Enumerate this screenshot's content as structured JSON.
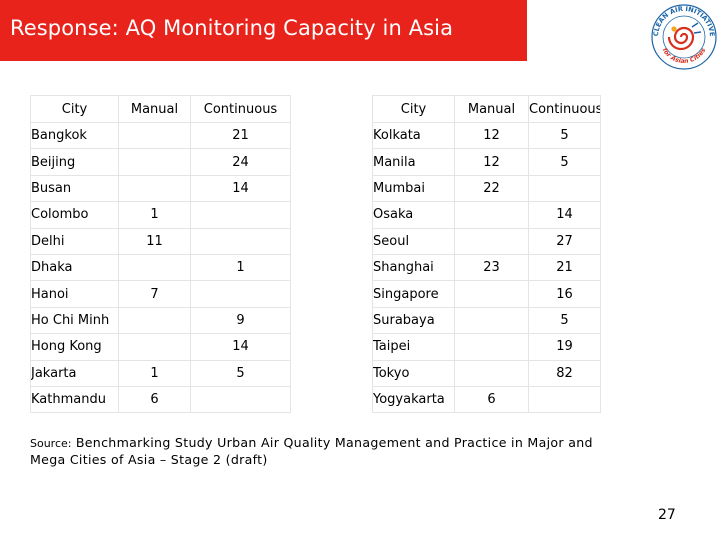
{
  "title": "Response: AQ Monitoring Capacity in Asia",
  "logo": {
    "text_top": "CLEAN AIR INITIATIVE",
    "text_bottom": "for Asian Cities",
    "colors": {
      "ring": "#1a64a8",
      "swirl": "#d7301f",
      "accent": "#f2a81d"
    }
  },
  "headers": {
    "city": "City",
    "manual": "Manual",
    "continuous": "Continuous"
  },
  "left_table": [
    {
      "city": "Bangkok",
      "manual": "",
      "continuous": "21"
    },
    {
      "city": "Beijing",
      "manual": "",
      "continuous": "24"
    },
    {
      "city": "Busan",
      "manual": "",
      "continuous": "14"
    },
    {
      "city": "Colombo",
      "manual": "1",
      "continuous": ""
    },
    {
      "city": "Delhi",
      "manual": "11",
      "continuous": ""
    },
    {
      "city": "Dhaka",
      "manual": "",
      "continuous": "1"
    },
    {
      "city": "Hanoi",
      "manual": "7",
      "continuous": ""
    },
    {
      "city": "Ho Chi Minh",
      "manual": "",
      "continuous": "9"
    },
    {
      "city": "Hong Kong",
      "manual": "",
      "continuous": "14"
    },
    {
      "city": "Jakarta",
      "manual": "1",
      "continuous": "5"
    },
    {
      "city": "Kathmandu",
      "manual": "6",
      "continuous": ""
    }
  ],
  "right_table": [
    {
      "city": "Kolkata",
      "manual": "12",
      "continuous": "5"
    },
    {
      "city": "Manila",
      "manual": "12",
      "continuous": "5"
    },
    {
      "city": "Mumbai",
      "manual": "22",
      "continuous": ""
    },
    {
      "city": "Osaka",
      "manual": "",
      "continuous": "14"
    },
    {
      "city": "Seoul",
      "manual": "",
      "continuous": "27"
    },
    {
      "city": "Shanghai",
      "manual": "23",
      "continuous": "21"
    },
    {
      "city": "Singapore",
      "manual": "",
      "continuous": "16"
    },
    {
      "city": "Surabaya",
      "manual": "",
      "continuous": "5"
    },
    {
      "city": "Taipei",
      "manual": "",
      "continuous": "19"
    },
    {
      "city": "Tokyo",
      "manual": "",
      "continuous": "82"
    },
    {
      "city": "Yogyakarta",
      "manual": "6",
      "continuous": ""
    }
  ],
  "source": {
    "label": "Source:",
    "text": "Benchmarking Study Urban Air Quality Management and Practice in Major and Mega Cities of Asia – Stage 2 (draft)"
  },
  "page_number": "27"
}
